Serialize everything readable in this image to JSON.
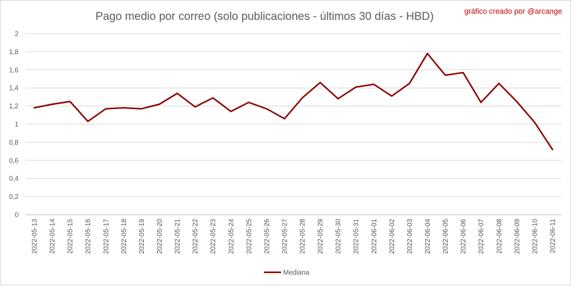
{
  "chart_data": {
    "type": "line",
    "title": "Pago medio por correo (solo publicaciones - últimos 30 días - HBD)",
    "credit": "gráfico creado por @arcange",
    "xlabel": "",
    "ylabel": "",
    "ylim": [
      0,
      2
    ],
    "ytick_step": 0.2,
    "grid": true,
    "legend": "bottom",
    "decimal_separator": ",",
    "categories": [
      "2022-05-13",
      "2022-05-14",
      "2022-05-15",
      "2022-05-16",
      "2022-05-17",
      "2022-05-18",
      "2022-05-19",
      "2022-05-20",
      "2022-05-21",
      "2022-05-22",
      "2022-05-23",
      "2022-05-24",
      "2022-05-25",
      "2022-05-26",
      "2022-05-27",
      "2022-05-28",
      "2022-05-29",
      "2022-05-30",
      "2022-05-31",
      "2022-06-01",
      "2022-06-02",
      "2022-06-03",
      "2022-06-04",
      "2022-06-05",
      "2022-06-06",
      "2022-06-07",
      "2022-06-08",
      "2022-06-09",
      "2022-06-10",
      "2022-06-11"
    ],
    "series": [
      {
        "name": "Mediana",
        "color": "#8b0000",
        "values": [
          1.18,
          1.22,
          1.25,
          1.03,
          1.17,
          1.18,
          1.17,
          1.22,
          1.34,
          1.19,
          1.29,
          1.14,
          1.24,
          1.17,
          1.06,
          1.29,
          1.46,
          1.28,
          1.41,
          1.44,
          1.31,
          1.45,
          1.78,
          1.54,
          1.57,
          1.24,
          1.45,
          1.25,
          1.02,
          0.72
        ]
      }
    ]
  }
}
